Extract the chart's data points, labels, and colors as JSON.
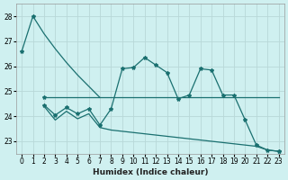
{
  "xlabel": "Humidex (Indice chaleur)",
  "bg_color": "#cff0f0",
  "grid_color": "#b8d8d8",
  "line_color": "#1a7070",
  "ylim": [
    22.5,
    28.5
  ],
  "xlim": [
    -0.5,
    23.5
  ],
  "yticks": [
    23,
    24,
    25,
    26,
    27,
    28
  ],
  "xticks": [
    0,
    1,
    2,
    3,
    4,
    5,
    6,
    7,
    8,
    9,
    10,
    11,
    12,
    13,
    14,
    15,
    16,
    17,
    18,
    19,
    20,
    21,
    22,
    23
  ],
  "series1_x": [
    0,
    1,
    2,
    3,
    4,
    5,
    6,
    7,
    8,
    9,
    10,
    11,
    12,
    13,
    14,
    15,
    16,
    17,
    18,
    19,
    20,
    21,
    22,
    23
  ],
  "series1_y": [
    26.6,
    28.0,
    27.3,
    26.7,
    26.15,
    25.65,
    25.2,
    24.75,
    null,
    null,
    null,
    null,
    null,
    null,
    null,
    null,
    null,
    null,
    null,
    null,
    null,
    null,
    null,
    null
  ],
  "series2_x": [
    2,
    3,
    4,
    5,
    6,
    7,
    8,
    9,
    10,
    11,
    12,
    13,
    14,
    15,
    16,
    17,
    18,
    19,
    20,
    21,
    22,
    23
  ],
  "series2_y": [
    24.75,
    24.75,
    24.75,
    24.75,
    24.75,
    24.75,
    24.75,
    24.75,
    24.75,
    24.75,
    24.75,
    24.75,
    24.75,
    24.75,
    24.75,
    24.75,
    24.75,
    24.75,
    24.75,
    24.75,
    24.75,
    24.75
  ],
  "series3_x": [
    2,
    3,
    4,
    5,
    6,
    7,
    8,
    9,
    10,
    11,
    12,
    13,
    14,
    15,
    16,
    17,
    18,
    19,
    20,
    21,
    22,
    23
  ],
  "series3_y": [
    24.45,
    24.05,
    24.35,
    24.1,
    24.3,
    23.65,
    24.3,
    25.9,
    25.95,
    26.35,
    26.05,
    25.75,
    24.7,
    24.85,
    25.9,
    25.85,
    24.85,
    24.85,
    23.85,
    22.85,
    22.65,
    22.6
  ],
  "series4_x": [
    2,
    3,
    4,
    5,
    6,
    7,
    8,
    9,
    10,
    11,
    12,
    13,
    14,
    15,
    16,
    17,
    18,
    19,
    20,
    21,
    22,
    23
  ],
  "series4_y": [
    24.4,
    23.85,
    24.2,
    23.9,
    24.1,
    23.55,
    23.45,
    23.4,
    23.35,
    23.3,
    23.25,
    23.2,
    23.15,
    23.1,
    23.05,
    23.0,
    22.95,
    22.9,
    22.85,
    22.8,
    22.65,
    22.6
  ]
}
